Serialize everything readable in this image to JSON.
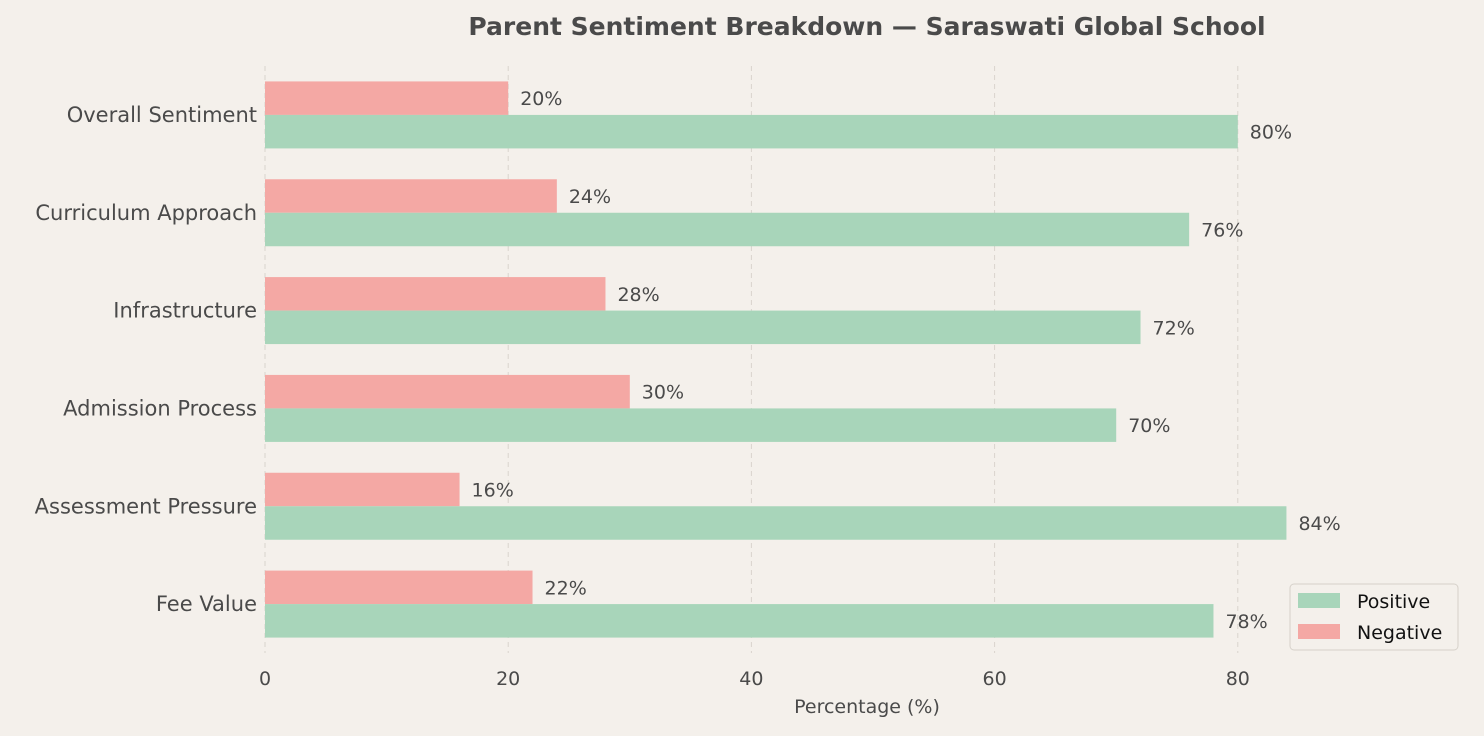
{
  "chart_data": {
    "type": "bar",
    "orientation": "horizontal",
    "title": "Parent Sentiment Breakdown — Saraswati Global School",
    "xlabel": "Percentage (%)",
    "ylabel": "",
    "categories": [
      "Overall Sentiment",
      "Curriculum Approach",
      "Infrastructure",
      "Admission Process",
      "Assessment Pressure",
      "Fee Value"
    ],
    "series": [
      {
        "name": "Positive",
        "color": "#a8d5ba",
        "values": [
          80,
          76,
          72,
          70,
          84,
          78
        ],
        "labels": [
          "80%",
          "76%",
          "72%",
          "70%",
          "84%",
          "78%"
        ]
      },
      {
        "name": "Negative",
        "color": "#f4a8a4",
        "values": [
          20,
          24,
          28,
          30,
          16,
          22
        ],
        "labels": [
          "20%",
          "24%",
          "28%",
          "30%",
          "16%",
          "22%"
        ]
      }
    ],
    "xlim": [
      0,
      100
    ],
    "xticks": [
      0,
      20,
      40,
      60,
      80
    ],
    "xtick_labels": [
      "0",
      "20",
      "40",
      "60",
      "80"
    ],
    "grid": "vertical dashed",
    "legend_position": "bottom-right",
    "background": "#f4f0eb"
  }
}
